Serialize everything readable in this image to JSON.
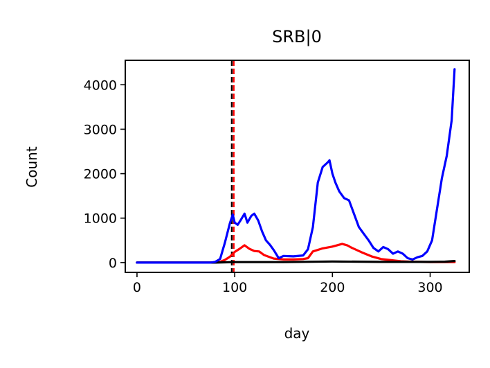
{
  "chart_data": {
    "type": "line",
    "title": "SRB|0",
    "xlabel": "day",
    "ylabel": "Count",
    "xlim": [
      -12,
      340
    ],
    "ylim": [
      -220,
      4550
    ],
    "xticks": [
      "0",
      "100",
      "200",
      "300"
    ],
    "yticks": [
      "0",
      "1000",
      "2000",
      "3000",
      "4000"
    ],
    "vlines": [
      {
        "x": 99,
        "color": "#ff0000",
        "style": "dashed"
      },
      {
        "x": 97,
        "color": "#000000",
        "style": "dashed"
      }
    ],
    "series": [
      {
        "color": "#ff0000",
        "x": [
          0,
          75,
          85,
          90,
          95,
          100,
          105,
          110,
          115,
          120,
          125,
          130,
          140,
          150,
          160,
          170,
          175,
          180,
          190,
          200,
          210,
          215,
          220,
          230,
          240,
          250,
          260,
          270,
          280,
          290,
          300,
          310,
          320,
          325
        ],
        "y": [
          0,
          0,
          15,
          60,
          130,
          240,
          310,
          390,
          310,
          260,
          250,
          170,
          90,
          70,
          70,
          80,
          100,
          250,
          320,
          360,
          420,
          390,
          330,
          230,
          140,
          80,
          55,
          30,
          20,
          15,
          10,
          10,
          10,
          10
        ]
      },
      {
        "color": "#000000",
        "x": [
          0,
          80,
          100,
          150,
          200,
          250,
          300,
          315,
          325
        ],
        "y": [
          0,
          0,
          10,
          10,
          25,
          15,
          15,
          20,
          35
        ]
      },
      {
        "color": "#0000ff",
        "x": [
          0,
          75,
          80,
          85,
          90,
          95,
          98,
          100,
          103,
          106,
          110,
          113,
          117,
          120,
          124,
          128,
          132,
          136,
          140,
          145,
          150,
          160,
          170,
          175,
          180,
          185,
          190,
          195,
          197,
          200,
          203,
          207,
          212,
          217,
          222,
          227,
          232,
          237,
          242,
          247,
          252,
          257,
          262,
          267,
          272,
          277,
          282,
          287,
          292,
          297,
          302,
          307,
          312,
          317,
          322,
          325
        ],
        "y": [
          0,
          0,
          15,
          80,
          450,
          880,
          1080,
          900,
          850,
          950,
          1100,
          900,
          1050,
          1100,
          950,
          700,
          500,
          400,
          280,
          100,
          150,
          140,
          160,
          300,
          800,
          1800,
          2150,
          2250,
          2300,
          2000,
          1800,
          1600,
          1450,
          1400,
          1100,
          800,
          650,
          500,
          330,
          250,
          350,
          300,
          200,
          250,
          200,
          100,
          70,
          120,
          150,
          250,
          500,
          1200,
          1900,
          2400,
          3200,
          4350
        ]
      }
    ]
  }
}
